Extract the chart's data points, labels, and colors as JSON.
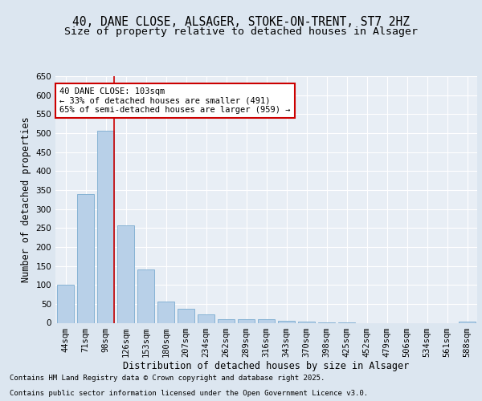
{
  "title_line1": "40, DANE CLOSE, ALSAGER, STOKE-ON-TRENT, ST7 2HZ",
  "title_line2": "Size of property relative to detached houses in Alsager",
  "xlabel": "Distribution of detached houses by size in Alsager",
  "ylabel": "Number of detached properties",
  "categories": [
    "44sqm",
    "71sqm",
    "98sqm",
    "126sqm",
    "153sqm",
    "180sqm",
    "207sqm",
    "234sqm",
    "262sqm",
    "289sqm",
    "316sqm",
    "343sqm",
    "370sqm",
    "398sqm",
    "425sqm",
    "452sqm",
    "479sqm",
    "506sqm",
    "534sqm",
    "561sqm",
    "588sqm"
  ],
  "values": [
    100,
    340,
    507,
    257,
    141,
    55,
    38,
    22,
    9,
    10,
    9,
    5,
    4,
    1,
    1,
    0,
    0,
    0,
    0,
    0,
    4
  ],
  "bar_color": "#b8d0e8",
  "bar_edge_color": "#7aabcf",
  "vline_x_index": 2,
  "vline_color": "#cc0000",
  "annotation_text": "40 DANE CLOSE: 103sqm\n← 33% of detached houses are smaller (491)\n65% of semi-detached houses are larger (959) →",
  "annotation_box_color": "#ffffff",
  "annotation_box_edge_color": "#cc0000",
  "ylim": [
    0,
    650
  ],
  "yticks": [
    0,
    50,
    100,
    150,
    200,
    250,
    300,
    350,
    400,
    450,
    500,
    550,
    600,
    650
  ],
  "bg_color": "#dce6f0",
  "plot_bg_color": "#e8eef5",
  "footer_line1": "Contains HM Land Registry data © Crown copyright and database right 2025.",
  "footer_line2": "Contains public sector information licensed under the Open Government Licence v3.0.",
  "title_fontsize": 10.5,
  "subtitle_fontsize": 9.5,
  "axis_label_fontsize": 8.5,
  "tick_fontsize": 7.5,
  "annotation_fontsize": 7.5,
  "footer_fontsize": 6.5
}
